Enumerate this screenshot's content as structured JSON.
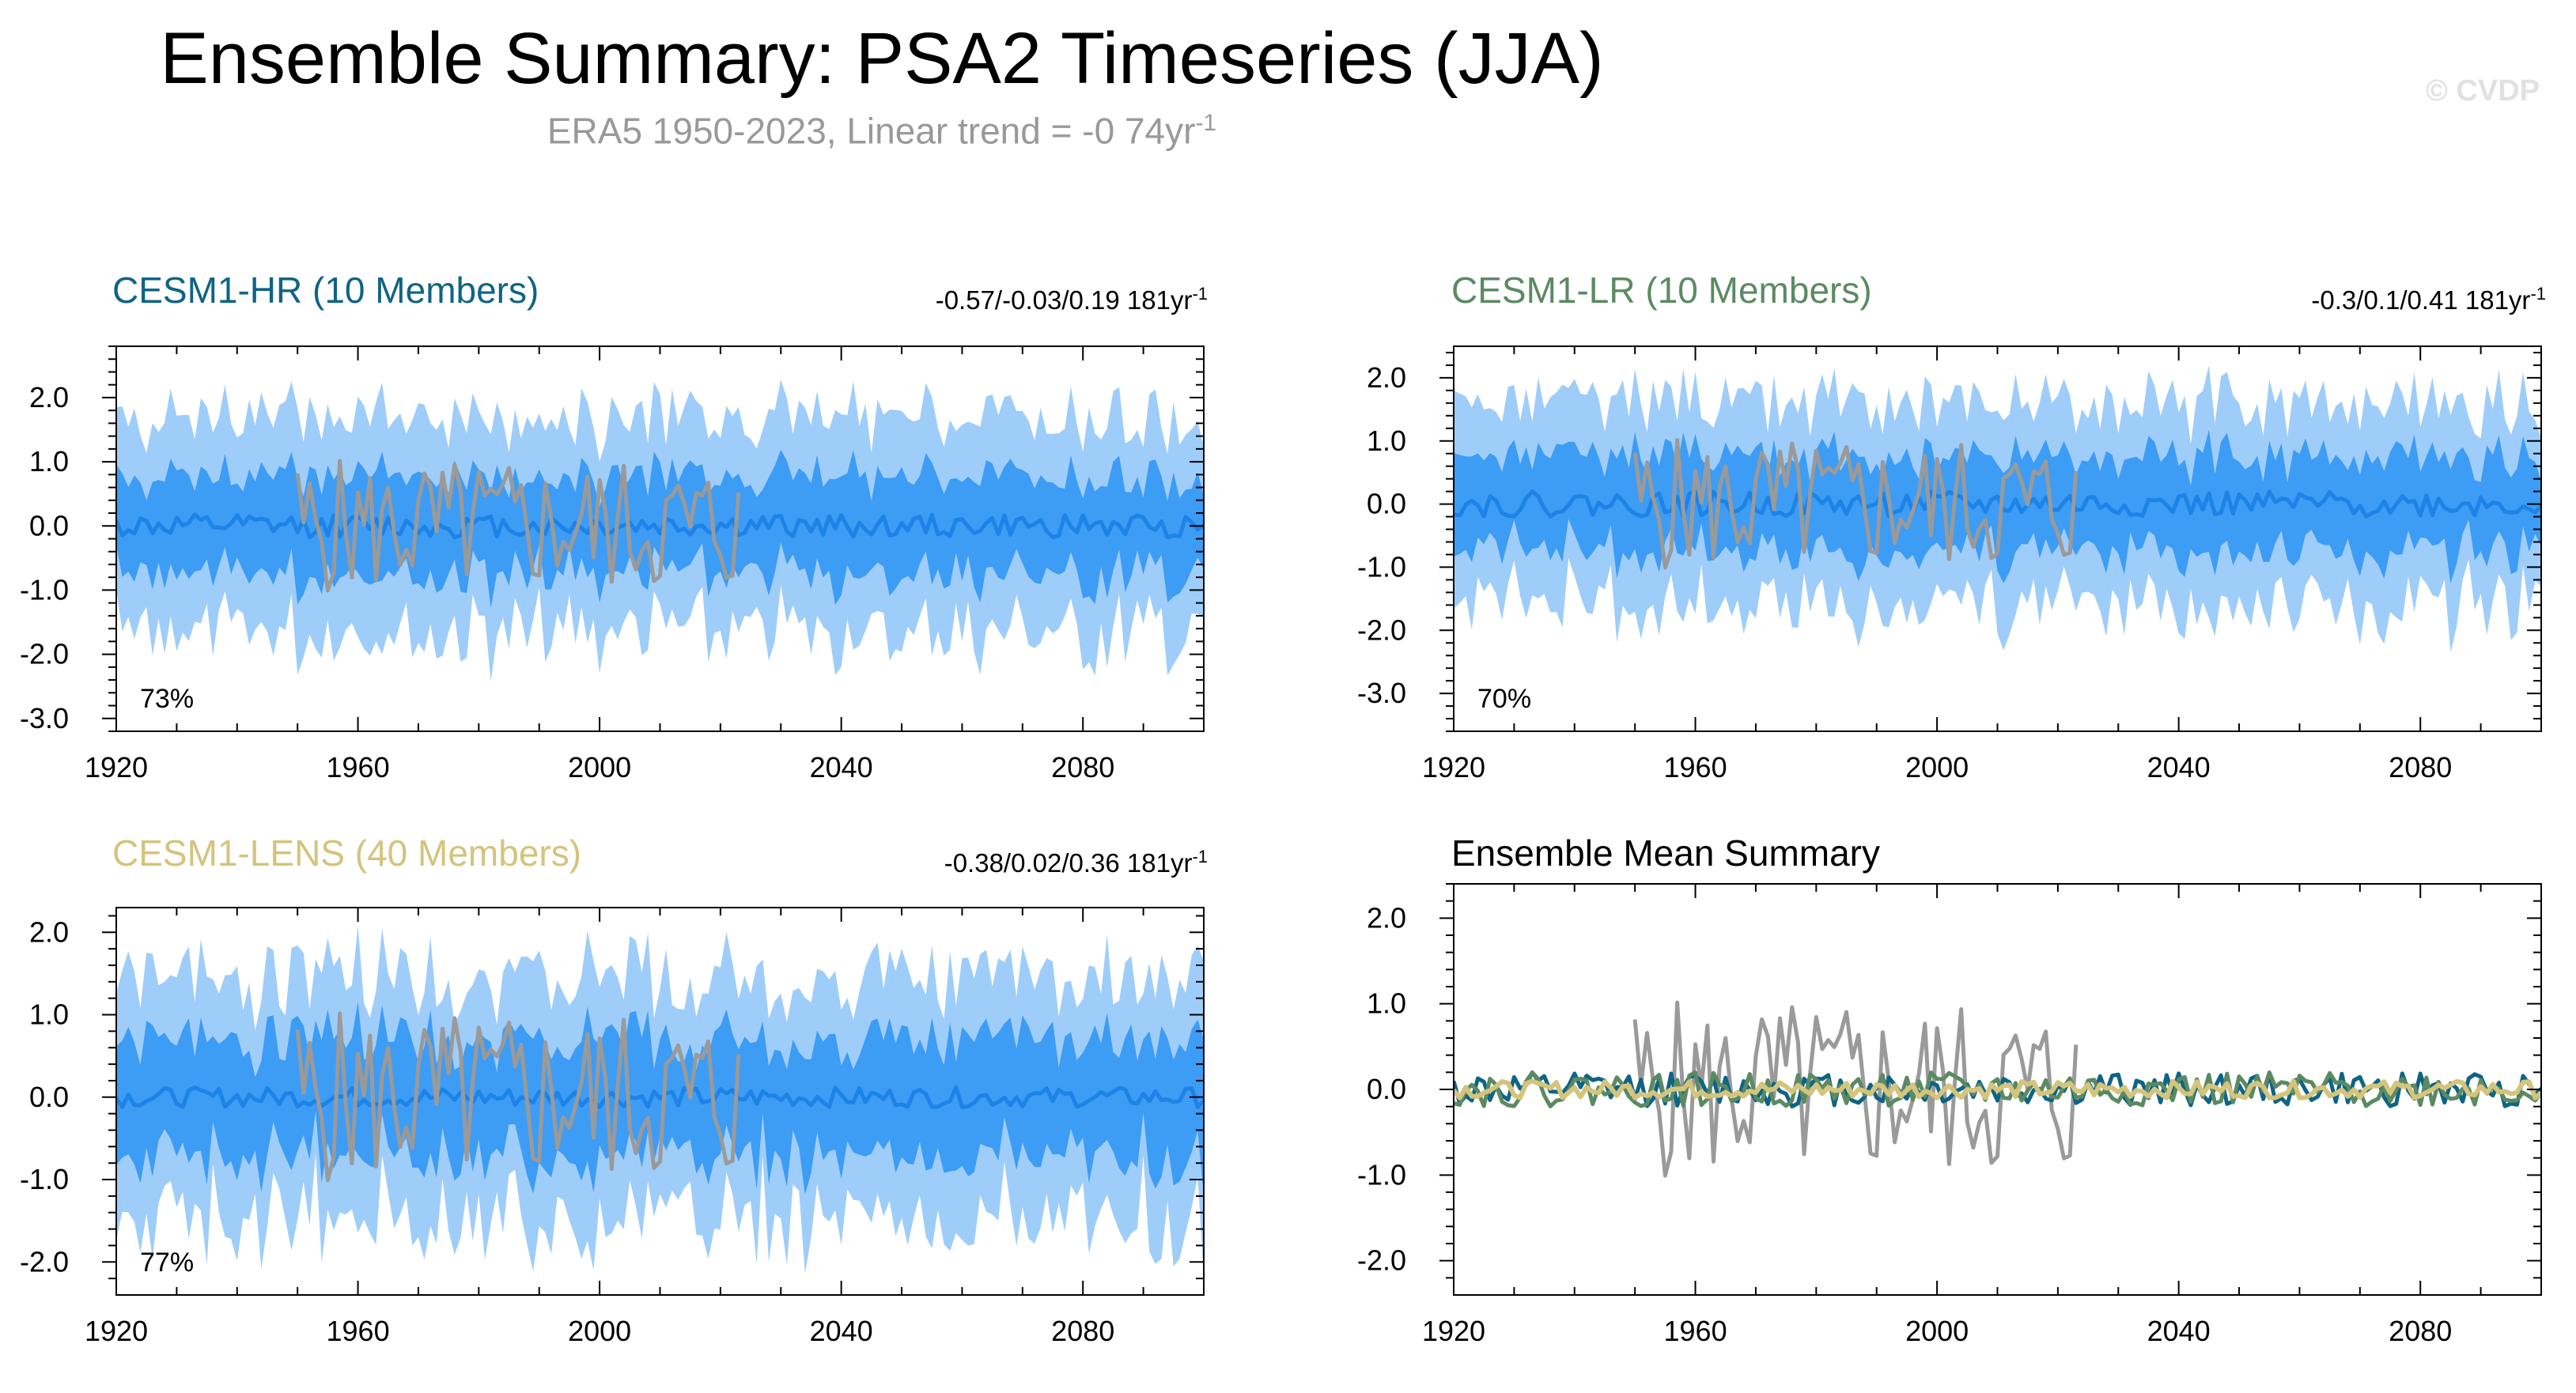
{
  "header": {
    "title": "Ensemble Summary: PSA2 Timeseries (JJA)",
    "subtitle_text": "ERA5 1950-2023, Linear trend = -0 74yr",
    "subtitle_sup": "-1",
    "watermark": "© CVDP"
  },
  "colors": {
    "outer_band": "#9fcdf9",
    "inner_band": "#3d9cf4",
    "ensemble_mean": "#1d83e6",
    "observations": "#9a9a9a",
    "cesm1_hr": "#0e6485",
    "cesm1_lr": "#5b8a62",
    "cesm1_lens": "#d4c47c"
  },
  "chart_data": [
    {
      "type": "area",
      "id": "hr",
      "title": "CESM1-HR (10 Members)",
      "trend_text": "-0.57/-0.03/0.19 181yr",
      "trend_sup": "-1",
      "pct_label": "73%",
      "xlim": [
        1920,
        2100
      ],
      "ylim": [
        -3.2,
        2.8
      ],
      "x_ticks": [
        1920,
        1960,
        2000,
        2040,
        2080
      ],
      "y_ticks": [
        2.0,
        1.0,
        0.0,
        -1.0,
        -2.0,
        -3.0
      ],
      "y_tick_labels": [
        "2.0",
        "1.0",
        "0.0",
        "-1.0",
        "-2.0",
        "-3.0"
      ],
      "series": [
        {
          "role": "band",
          "inner_half_width": 0.75,
          "outer_half_width": 1.65,
          "x_start": 1920,
          "x_end": 2100,
          "seed": 11
        },
        {
          "role": "mean",
          "amplitude": 0.18,
          "x_start": 1920,
          "x_end": 2100,
          "seed": 12
        },
        {
          "role": "obs",
          "amplitude": 1.05,
          "x_start": 1950,
          "x_end": 2023,
          "seed": 5
        }
      ]
    },
    {
      "type": "area",
      "id": "lr",
      "title": "CESM1-LR (10 Members)",
      "trend_text": "-0.3/0.1/0.41 181yr",
      "trend_sup": "-1",
      "pct_label": "70%",
      "xlim": [
        1920,
        2100
      ],
      "ylim": [
        -3.6,
        2.5
      ],
      "x_ticks": [
        1920,
        1960,
        2000,
        2040,
        2080
      ],
      "y_ticks": [
        2.0,
        1.0,
        0.0,
        -1.0,
        -2.0,
        -3.0
      ],
      "y_tick_labels": [
        "2.0",
        "1.0",
        "0.0",
        "-1.0",
        "-2.0",
        "-3.0"
      ],
      "series": [
        {
          "role": "band",
          "inner_half_width": 0.75,
          "outer_half_width": 1.6,
          "x_start": 1920,
          "x_end": 2100,
          "seed": 21
        },
        {
          "role": "mean",
          "amplitude": 0.2,
          "x_start": 1920,
          "x_end": 2100,
          "seed": 22
        },
        {
          "role": "obs",
          "amplitude": 1.05,
          "x_start": 1950,
          "x_end": 2023,
          "seed": 5
        }
      ]
    },
    {
      "type": "area",
      "id": "lens",
      "title": "CESM1-LENS (40 Members)",
      "trend_text": "-0.38/0.02/0.36 181yr",
      "trend_sup": "-1",
      "pct_label": "77%",
      "xlim": [
        1920,
        2100
      ],
      "ylim": [
        -2.4,
        2.3
      ],
      "x_ticks": [
        1920,
        1960,
        2000,
        2040,
        2080
      ],
      "y_ticks": [
        2.0,
        1.0,
        0.0,
        -1.0,
        -2.0
      ],
      "y_tick_labels": [
        "2.0",
        "1.0",
        "0.0",
        "-1.0",
        "-2.0"
      ],
      "series": [
        {
          "role": "band",
          "inner_half_width": 0.7,
          "outer_half_width": 1.45,
          "x_start": 1920,
          "x_end": 2100,
          "seed": 31
        },
        {
          "role": "mean",
          "amplitude": 0.12,
          "x_start": 1920,
          "x_end": 2100,
          "seed": 32
        },
        {
          "role": "obs",
          "amplitude": 1.05,
          "x_start": 1950,
          "x_end": 2023,
          "seed": 5
        }
      ]
    },
    {
      "type": "line",
      "id": "summary",
      "title": "Ensemble Mean Summary",
      "xlim": [
        1920,
        2100
      ],
      "ylim": [
        -2.4,
        2.4
      ],
      "x_ticks": [
        1920,
        1960,
        2000,
        2040,
        2080
      ],
      "y_ticks": [
        2.0,
        1.0,
        0.0,
        -1.0,
        -2.0
      ],
      "y_tick_labels": [
        "2.0",
        "1.0",
        "0.0",
        "-1.0",
        "-2.0"
      ],
      "series": [
        {
          "role": "obs",
          "amplitude": 1.05,
          "x_start": 1950,
          "x_end": 2023,
          "seed": 5
        },
        {
          "role": "hr",
          "amplitude": 0.2,
          "x_start": 1920,
          "x_end": 2100,
          "seed": 12
        },
        {
          "role": "lr",
          "amplitude": 0.2,
          "x_start": 1920,
          "x_end": 2100,
          "seed": 22
        },
        {
          "role": "lens",
          "amplitude": 0.1,
          "x_start": 1920,
          "x_end": 2100,
          "seed": 32
        }
      ]
    }
  ]
}
